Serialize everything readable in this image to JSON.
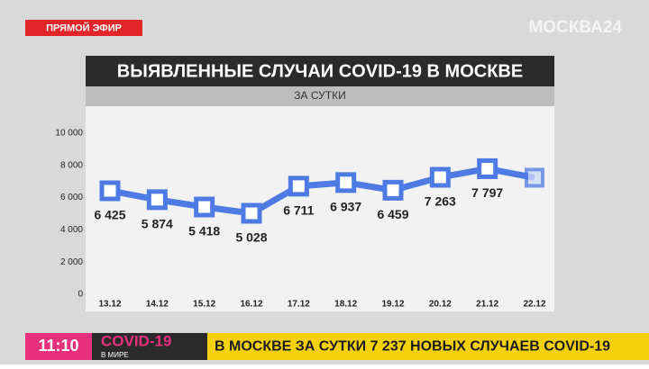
{
  "header": {
    "live": "ПРЯМОЙ ЭФИР",
    "logo": "МОСКВА24"
  },
  "chart_data": {
    "type": "line",
    "title": "ВЫЯВЛЕННЫЕ СЛУЧАИ COVID-19 В МОСКВЕ",
    "subtitle": "ЗА СУТКИ",
    "categories": [
      "13.12",
      "14.12",
      "15.12",
      "16.12",
      "17.12",
      "18.12",
      "19.12",
      "20.12",
      "21.12",
      "22.12"
    ],
    "values": [
      6425,
      5874,
      5418,
      5028,
      6711,
      6937,
      6459,
      7263,
      7797,
      7237
    ],
    "value_labels": [
      "6 425",
      "5 874",
      "5 418",
      "5 028",
      "6 711",
      "6 937",
      "6 459",
      "7 263",
      "7 797",
      null
    ],
    "color": "#4d7be3",
    "ylim": [
      0,
      10000
    ],
    "yticks": [
      0,
      {
        "value": 2000,
        "label": "2 000"
      },
      {
        "value": 4000,
        "label": "4 000"
      },
      {
        "value": 6000,
        "label": "6 000"
      },
      {
        "value": 8000,
        "label": "8 000"
      },
      {
        "value": 10000,
        "label": "10 000"
      }
    ]
  },
  "ticker": {
    "time": "11:10",
    "topic": "COVID-19",
    "topic_sub": "В МИРЕ",
    "headline": "В МОСКВЕ ЗА СУТКИ 7 237 НОВЫХ СЛУЧАЕВ COVID-19"
  }
}
